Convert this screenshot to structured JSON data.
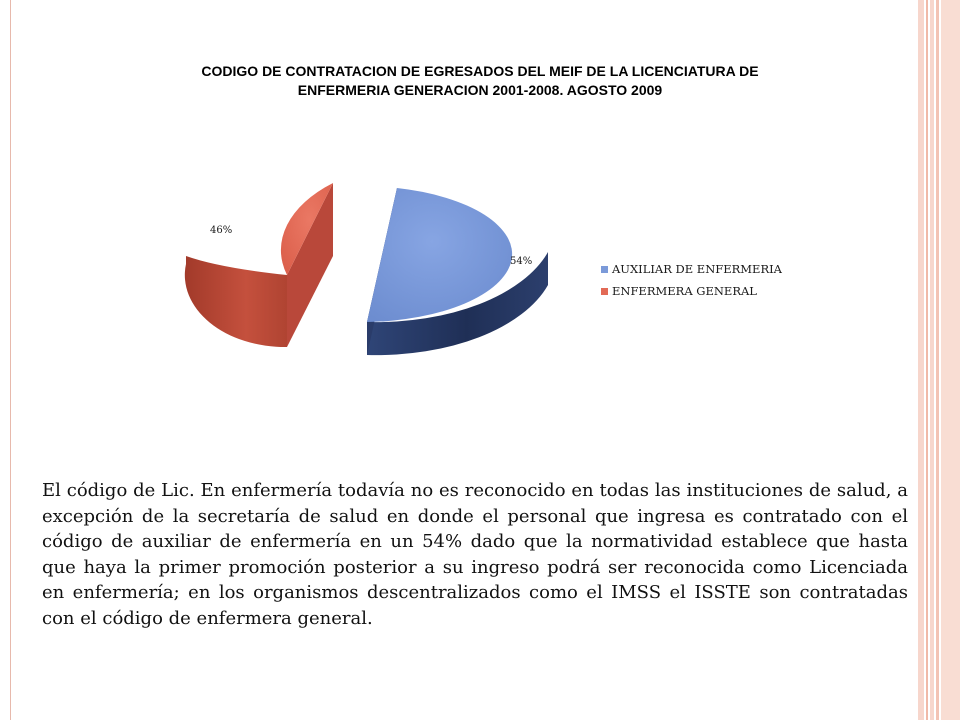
{
  "chart_data": {
    "type": "pie",
    "title": "CODIGO DE CONTRATACION  DE EGRESADOS DEL MEIF DE LA LICENCIATURA DE ENFERMERIA GENERACION 2001-2008. AGOSTO 2009",
    "categories": [
      "AUXILIAR DE ENFERMERIA",
      "ENFERMERA GENERAL"
    ],
    "values": [
      54,
      46
    ],
    "data_labels": [
      "54%",
      "46%"
    ],
    "colors": [
      "#7b9ad9",
      "#e26a56"
    ],
    "legend_position": "right",
    "exploded": true,
    "three_d": true
  },
  "body_text": "El código de Lic. En enfermería  todavía no es reconocido en todas las instituciones de salud,  a  excepción de la secretaría de salud en donde  el personal que  ingresa  es contratado con el código de auxiliar de enfermería en un 54%  dado que la normatividad establece que hasta que haya la primer promoción posterior a su ingreso podrá ser reconocida como Licenciada en enfermería; en los organismos descentralizados como el IMSS  el ISSTE son contratadas con el código de enfermera general."
}
